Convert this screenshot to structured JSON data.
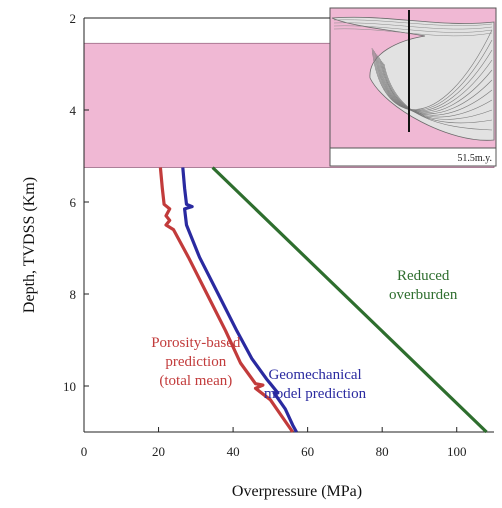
{
  "chart_data": {
    "type": "line",
    "xlabel": "Overpressure (MPa)",
    "ylabel": "Depth, TVDSS (Km)",
    "xlim": [
      0,
      110
    ],
    "ylim": [
      2,
      11
    ],
    "y_inverted": true,
    "x_ticks": [
      "0",
      "20",
      "40",
      "60",
      "80",
      "100"
    ],
    "y_ticks": [
      "2",
      "4",
      "6",
      "8",
      "10"
    ],
    "shaded_band": {
      "depth_top": 2.55,
      "depth_bottom": 5.25,
      "color": "#f0b8d4"
    },
    "inset_label": "51.5m.y.",
    "series": [
      {
        "name": "Porosity-based prediction (total mean)",
        "color": "#c23b3b",
        "points": [
          [
            20.5,
            5.25
          ],
          [
            21,
            5.7
          ],
          [
            21.5,
            6.05
          ],
          [
            23,
            6.15
          ],
          [
            22,
            6.3
          ],
          [
            23,
            6.4
          ],
          [
            22,
            6.5
          ],
          [
            24,
            6.6
          ],
          [
            28,
            7.2
          ],
          [
            33,
            8.0
          ],
          [
            38,
            8.8
          ],
          [
            42,
            9.5
          ],
          [
            46,
            9.95
          ],
          [
            48,
            9.98
          ],
          [
            46,
            10.05
          ],
          [
            50,
            10.3
          ],
          [
            53,
            10.65
          ],
          [
            56,
            11.0
          ]
        ]
      },
      {
        "name": "Geomechanical model prediction",
        "color": "#2a2aa0",
        "points": [
          [
            26.5,
            5.25
          ],
          [
            27,
            5.7
          ],
          [
            27.5,
            6.05
          ],
          [
            29,
            6.1
          ],
          [
            27,
            6.15
          ],
          [
            27.5,
            6.5
          ],
          [
            31,
            7.2
          ],
          [
            36,
            8.0
          ],
          [
            41,
            8.8
          ],
          [
            45,
            9.4
          ],
          [
            49,
            9.85
          ],
          [
            50,
            9.95
          ],
          [
            52,
            10.15
          ],
          [
            51,
            10.15
          ],
          [
            54,
            10.5
          ],
          [
            56,
            10.85
          ],
          [
            57,
            11.0
          ]
        ]
      },
      {
        "name": "Reduced overburden",
        "color": "#2e6e2e",
        "points": [
          [
            34.5,
            5.25
          ],
          [
            108,
            11.0
          ]
        ]
      }
    ],
    "annotations": [
      {
        "lines": [
          "Reduced",
          "overburden"
        ],
        "color": "#2e6e2e",
        "x": 91,
        "y": 7.7
      },
      {
        "lines": [
          "Porosity-based",
          "prediction",
          "(total mean)"
        ],
        "color": "#c23b3b",
        "x": 30,
        "y": 9.15
      },
      {
        "lines": [
          "Geomechanical",
          "model prediction"
        ],
        "color": "#2a2aa0",
        "x": 62,
        "y": 9.85
      }
    ],
    "grid": false,
    "legend": "none"
  }
}
